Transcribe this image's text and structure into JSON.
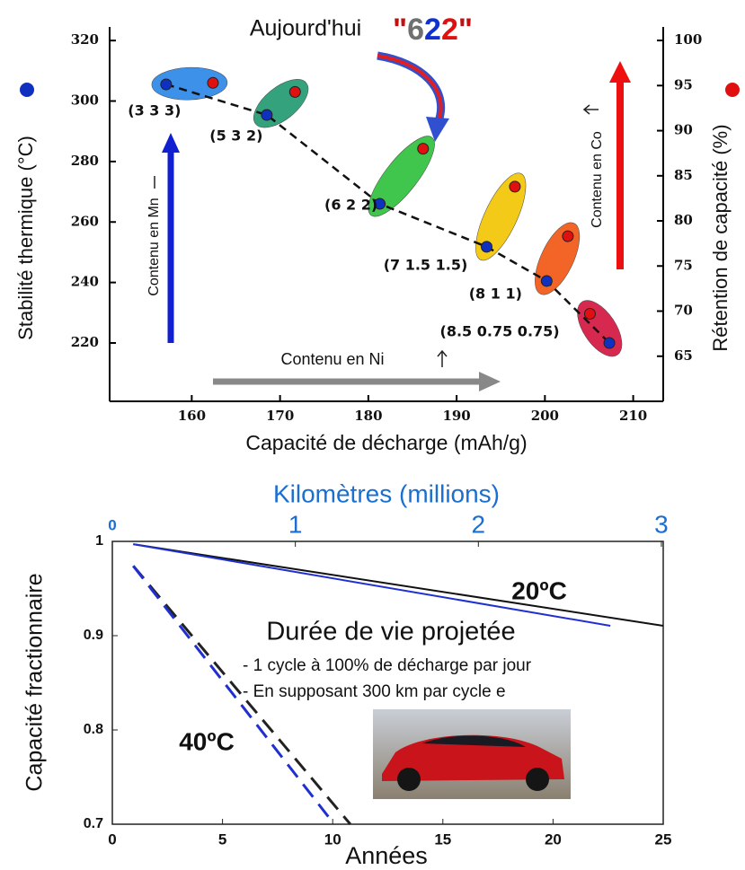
{
  "chart_data": [
    {
      "type": "scatter",
      "xlabel": "Capacité de décharge (mAh/g)",
      "ylabel": "Stabilité thermique (°C)",
      "y2label": "Rétention de capacité (%)",
      "xlim": [
        150.7,
        213.4
      ],
      "xticks": [
        160,
        170,
        180,
        190,
        200,
        210
      ],
      "ylim": [
        200.7,
        324.5
      ],
      "yticks": [
        220,
        240,
        260,
        280,
        300,
        320
      ],
      "y2lim": [
        60,
        101.5
      ],
      "y2ticks": [
        65,
        70,
        75,
        80,
        85,
        90,
        95,
        100
      ],
      "point_labels": [
        "(3 3 3)",
        "(5 3 2)",
        "(6 2 2)",
        "(7 1.5 1.5)",
        "(8 1 1)",
        "(8.5 0.75 0.75)"
      ],
      "ellipse_colors": [
        "#2a86e6",
        "#1f9a70",
        "#2cbf3a",
        "#f2c500",
        "#f2550f",
        "#d3123c"
      ],
      "series": [
        {
          "color": "#1030c0",
          "axis": "y",
          "x": [
            157.1,
            168.5,
            181.3,
            193.4,
            200.2,
            207.3
          ],
          "values": [
            305.5,
            295.4,
            266,
            251.8,
            240.5,
            220
          ]
        },
        {
          "color": "#e01010",
          "axis": "y2",
          "x": [
            162.4,
            171.7,
            186.2,
            196.6,
            202.6,
            205.1
          ],
          "values": [
            95.3,
            94.3,
            88,
            83.8,
            78.3,
            69.7
          ]
        }
      ],
      "annotations": [
        "Aujourd'hui",
        "\"622\"",
        "Contenu en Mn",
        "Contenu en Co",
        "Contenu en Ni"
      ],
      "highlight_colors": [
        "#c01010",
        "#707070",
        "#1030d0",
        "#e01010",
        "#c01010"
      ]
    },
    {
      "type": "line",
      "xlabel": "Années",
      "ylabel": "Capacité fractionnaire",
      "x2label": "Kilomètres (millions)",
      "xlim": [
        0,
        25
      ],
      "xticks": [
        0,
        5,
        10,
        15,
        20,
        25
      ],
      "x2lim": [
        0,
        3.01
      ],
      "x2ticks": [
        0,
        1,
        2,
        3
      ],
      "x2color": "#1a6fd0",
      "ylim": [
        0.7,
        1
      ],
      "yticks": [
        0.7,
        0.8,
        0.9,
        1
      ],
      "series": [
        {
          "color": "#111111",
          "dashed": false,
          "x": [
            0.95,
            25
          ],
          "values": [
            0.997,
            0.9105
          ]
        },
        {
          "color": "#2030d0",
          "dashed": false,
          "x": [
            0.95,
            22.6
          ],
          "values": [
            0.997,
            0.9105
          ]
        },
        {
          "color": "#222222",
          "dashed": true,
          "x": [
            0.95,
            10.8
          ],
          "values": [
            0.974,
            0.7
          ]
        },
        {
          "color": "#2030d0",
          "dashed": true,
          "x": [
            0.95,
            9.8
          ],
          "values": [
            0.974,
            0.708
          ]
        }
      ],
      "annotations": [
        "20ºC",
        "40ºC",
        "Durée de vie projetée",
        "- 1 cycle à 100% de décharge par jour",
        "- En supposant 300 km par cycle e"
      ]
    }
  ]
}
